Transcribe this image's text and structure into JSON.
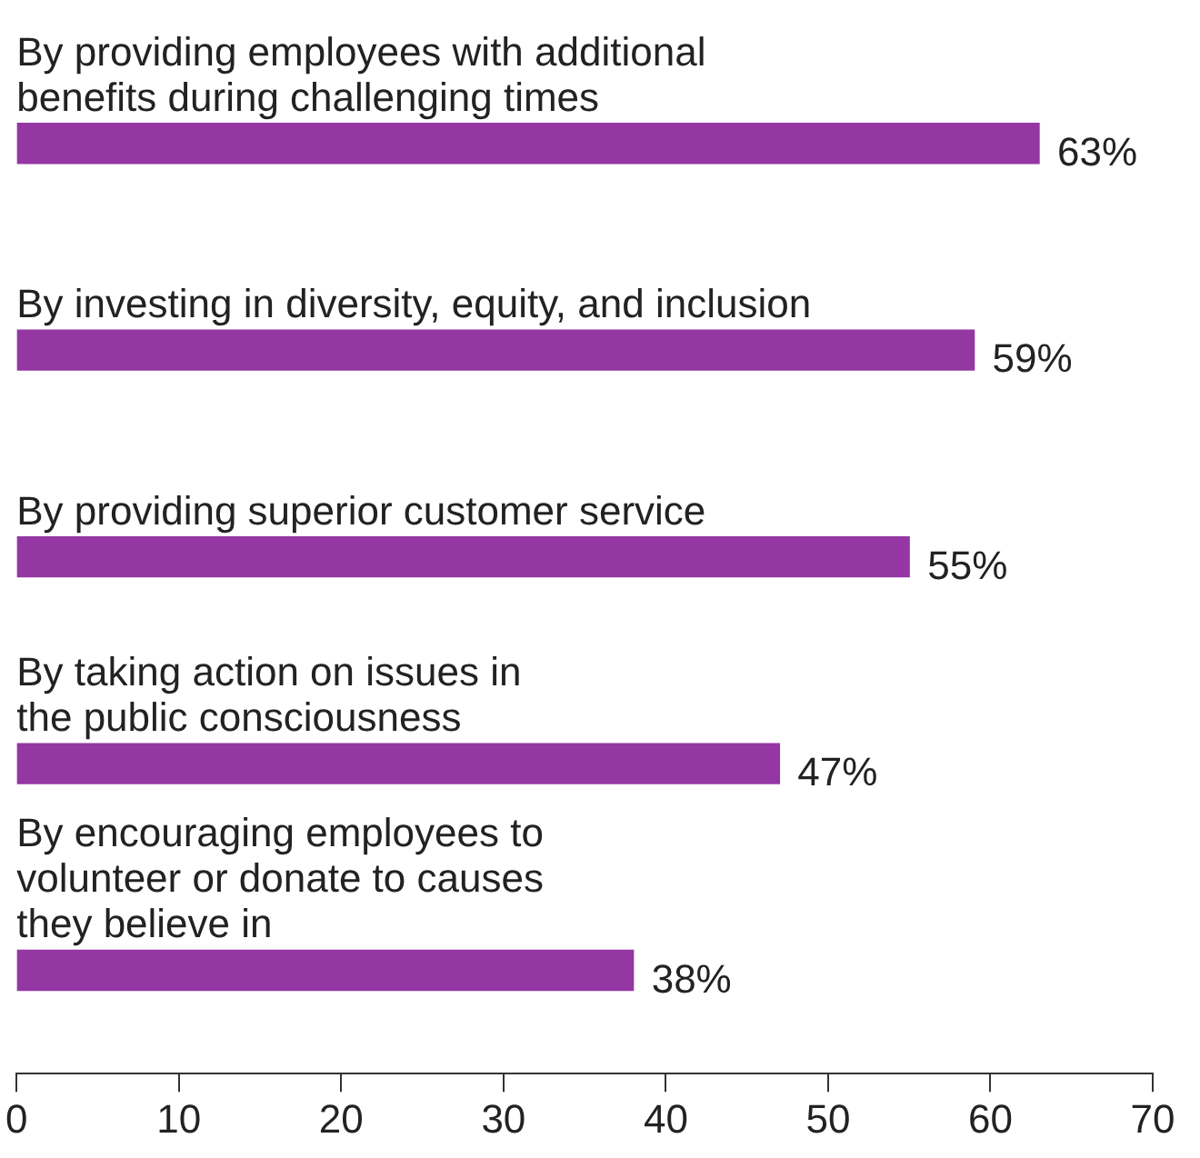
{
  "chart_data": {
    "type": "bar",
    "orientation": "horizontal",
    "categories": [
      "By providing employees with additional\nbenefits during challenging times",
      "By investing in diversity, equity, and inclusion",
      "By providing superior customer service",
      "By taking action on issues in\nthe public consciousness",
      "By encouraging employees to\nvolunteer or donate to causes\nthey believe in"
    ],
    "values": [
      63,
      59,
      55,
      47,
      38
    ],
    "value_labels": [
      "63%",
      "59%",
      "55%",
      "47%",
      "38%"
    ],
    "color": "#9437a3",
    "xlim": [
      0,
      70
    ],
    "xticks": [
      0,
      10,
      20,
      30,
      40,
      50,
      60,
      70
    ],
    "grid": false,
    "legend": false
  }
}
